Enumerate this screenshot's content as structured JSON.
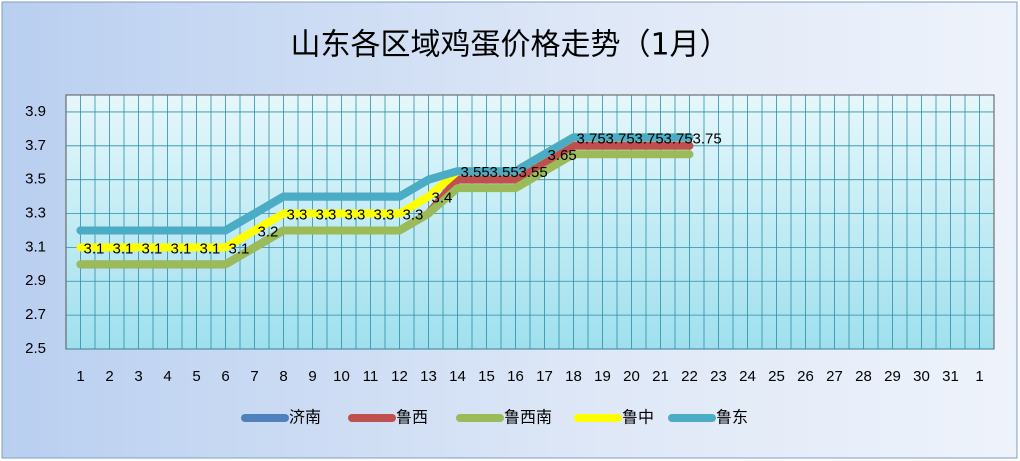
{
  "chart_data": {
    "type": "line",
    "title": "山东各区域鸡蛋价格走势（1月）",
    "categories": [
      "1",
      "2",
      "3",
      "4",
      "5",
      "6",
      "7",
      "8",
      "9",
      "10",
      "11",
      "12",
      "13",
      "14",
      "15",
      "16",
      "17",
      "18",
      "19",
      "20",
      "21",
      "22",
      "23",
      "24",
      "25",
      "26",
      "27",
      "28",
      "29",
      "30",
      "31",
      "1"
    ],
    "ylim": [
      2.5,
      4.0
    ],
    "yticks": [
      2.5,
      2.7,
      2.9,
      3.1,
      3.3,
      3.5,
      3.7,
      3.9
    ],
    "grid": true,
    "legend": "bottom",
    "series": [
      {
        "name": "济南",
        "color": "#4f81bd",
        "values": [
          3.2,
          3.2,
          3.2,
          3.2,
          3.2,
          3.2,
          3.3,
          3.4,
          3.4,
          3.4,
          3.4,
          3.4,
          3.5,
          3.55,
          3.55,
          3.55,
          3.65,
          3.75,
          3.75,
          3.75,
          3.75,
          3.75,
          null,
          null,
          null,
          null,
          null,
          null,
          null,
          null,
          null,
          null
        ]
      },
      {
        "name": "鲁西",
        "color": "#c0504d",
        "values": [
          3.0,
          3.0,
          3.0,
          3.0,
          3.0,
          3.0,
          3.1,
          3.2,
          3.2,
          3.2,
          3.2,
          3.2,
          3.3,
          3.5,
          3.5,
          3.5,
          3.6,
          3.7,
          3.7,
          3.7,
          3.7,
          3.7,
          null,
          null,
          null,
          null,
          null,
          null,
          null,
          null,
          null,
          null
        ]
      },
      {
        "name": "鲁西南",
        "color": "#9bbb59",
        "values": [
          3.0,
          3.0,
          3.0,
          3.0,
          3.0,
          3.0,
          3.1,
          3.2,
          3.2,
          3.2,
          3.2,
          3.2,
          3.3,
          3.45,
          3.45,
          3.45,
          3.55,
          3.65,
          3.65,
          3.65,
          3.65,
          3.65,
          null,
          null,
          null,
          null,
          null,
          null,
          null,
          null,
          null,
          null
        ]
      },
      {
        "name": "鲁中",
        "color": "#ffff00",
        "data_labels": true,
        "values": [
          3.1,
          3.1,
          3.1,
          3.1,
          3.1,
          3.1,
          3.2,
          3.3,
          3.3,
          3.3,
          3.3,
          3.3,
          3.4,
          3.55,
          3.55,
          3.55,
          3.65,
          3.75,
          3.75,
          3.75,
          3.75,
          3.75,
          null,
          null,
          null,
          null,
          null,
          null,
          null,
          null,
          null,
          null
        ]
      },
      {
        "name": "鲁东",
        "color": "#4bacc6",
        "values": [
          3.2,
          3.2,
          3.2,
          3.2,
          3.2,
          3.2,
          3.3,
          3.4,
          3.4,
          3.4,
          3.4,
          3.4,
          3.5,
          3.55,
          3.55,
          3.55,
          3.65,
          3.75,
          3.75,
          3.75,
          3.75,
          3.75,
          null,
          null,
          null,
          null,
          null,
          null,
          null,
          null,
          null,
          null
        ]
      }
    ]
  }
}
